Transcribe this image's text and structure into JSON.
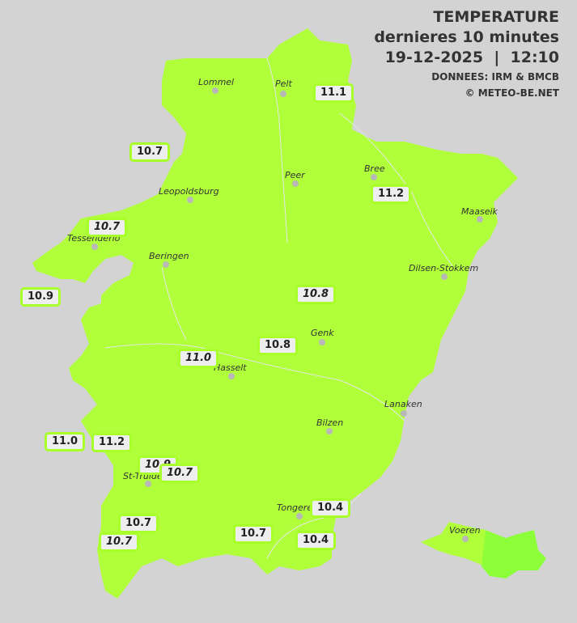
{
  "header": {
    "title": "TEMPERATURE",
    "subtitle": "dernieres 10 minutes",
    "datetime": "19-12-2025  |  12:10",
    "source": "DONNEES: IRM & BMCB",
    "copyright": "© METEO-BE.NET"
  },
  "colors": {
    "land": "#b0ff3a",
    "voeren_east": "#8cff3a",
    "background": "#d3d3d3",
    "label_border": "#a8ff2a"
  },
  "cities": [
    "Lommel",
    "Pelt",
    "Peer",
    "Bree",
    "Leopoldsburg",
    "Maaseik",
    "Tessenderlo",
    "Beringen",
    "Dilsen-Stokkem",
    "Genk",
    "Hasselt",
    "Lanaken",
    "Bilzen",
    "St-Truiden",
    "Tongeren",
    "Voeren"
  ],
  "stations": [
    "11.1",
    "10.7",
    "11.2",
    "10.7",
    "10.9",
    "10.8",
    "10.8",
    "11.0",
    "11.0",
    "11.2",
    "10.9",
    "10.7",
    "10.7",
    "10.4",
    "10.7",
    "10.4",
    "10.7"
  ]
}
